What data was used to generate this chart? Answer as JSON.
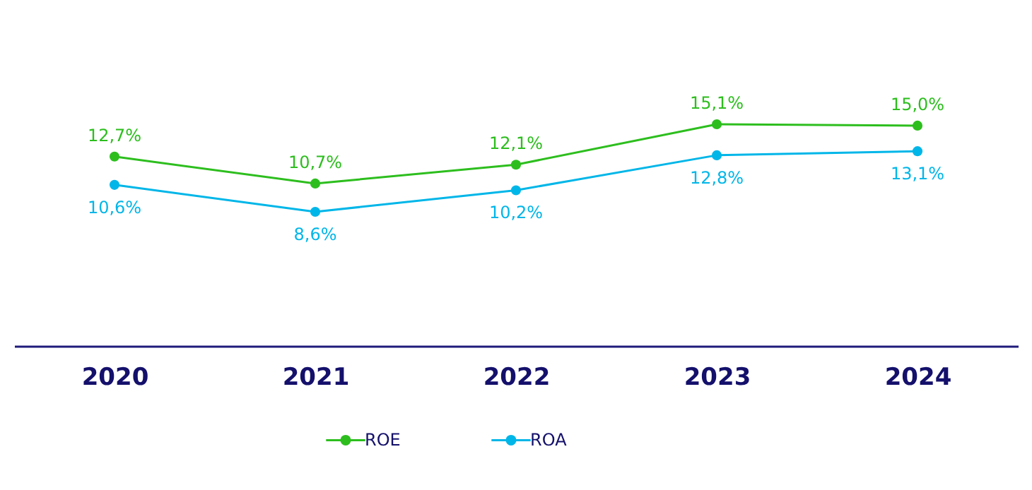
{
  "chart_data": {
    "type": "line",
    "categories": [
      "2020",
      "2021",
      "2022",
      "2023",
      "2024"
    ],
    "series": [
      {
        "name": "ROE",
        "color": "#2dbe1e",
        "values": [
          12.7,
          10.7,
          12.1,
          15.1,
          15.0
        ],
        "value_labels": [
          "12,7%",
          "10,7%",
          "12,1%",
          "15,1%",
          "15,0%"
        ]
      },
      {
        "name": "ROA",
        "color": "#00b6e8",
        "values": [
          10.6,
          8.6,
          10.2,
          12.8,
          13.1
        ],
        "value_labels": [
          "10,6%",
          "8,6%",
          "10,2%",
          "12,8%",
          "13,1%"
        ]
      }
    ],
    "tick_labels": "x",
    "grid": false,
    "legend": "bottom",
    "marker": "circle",
    "line_style": "solid"
  }
}
